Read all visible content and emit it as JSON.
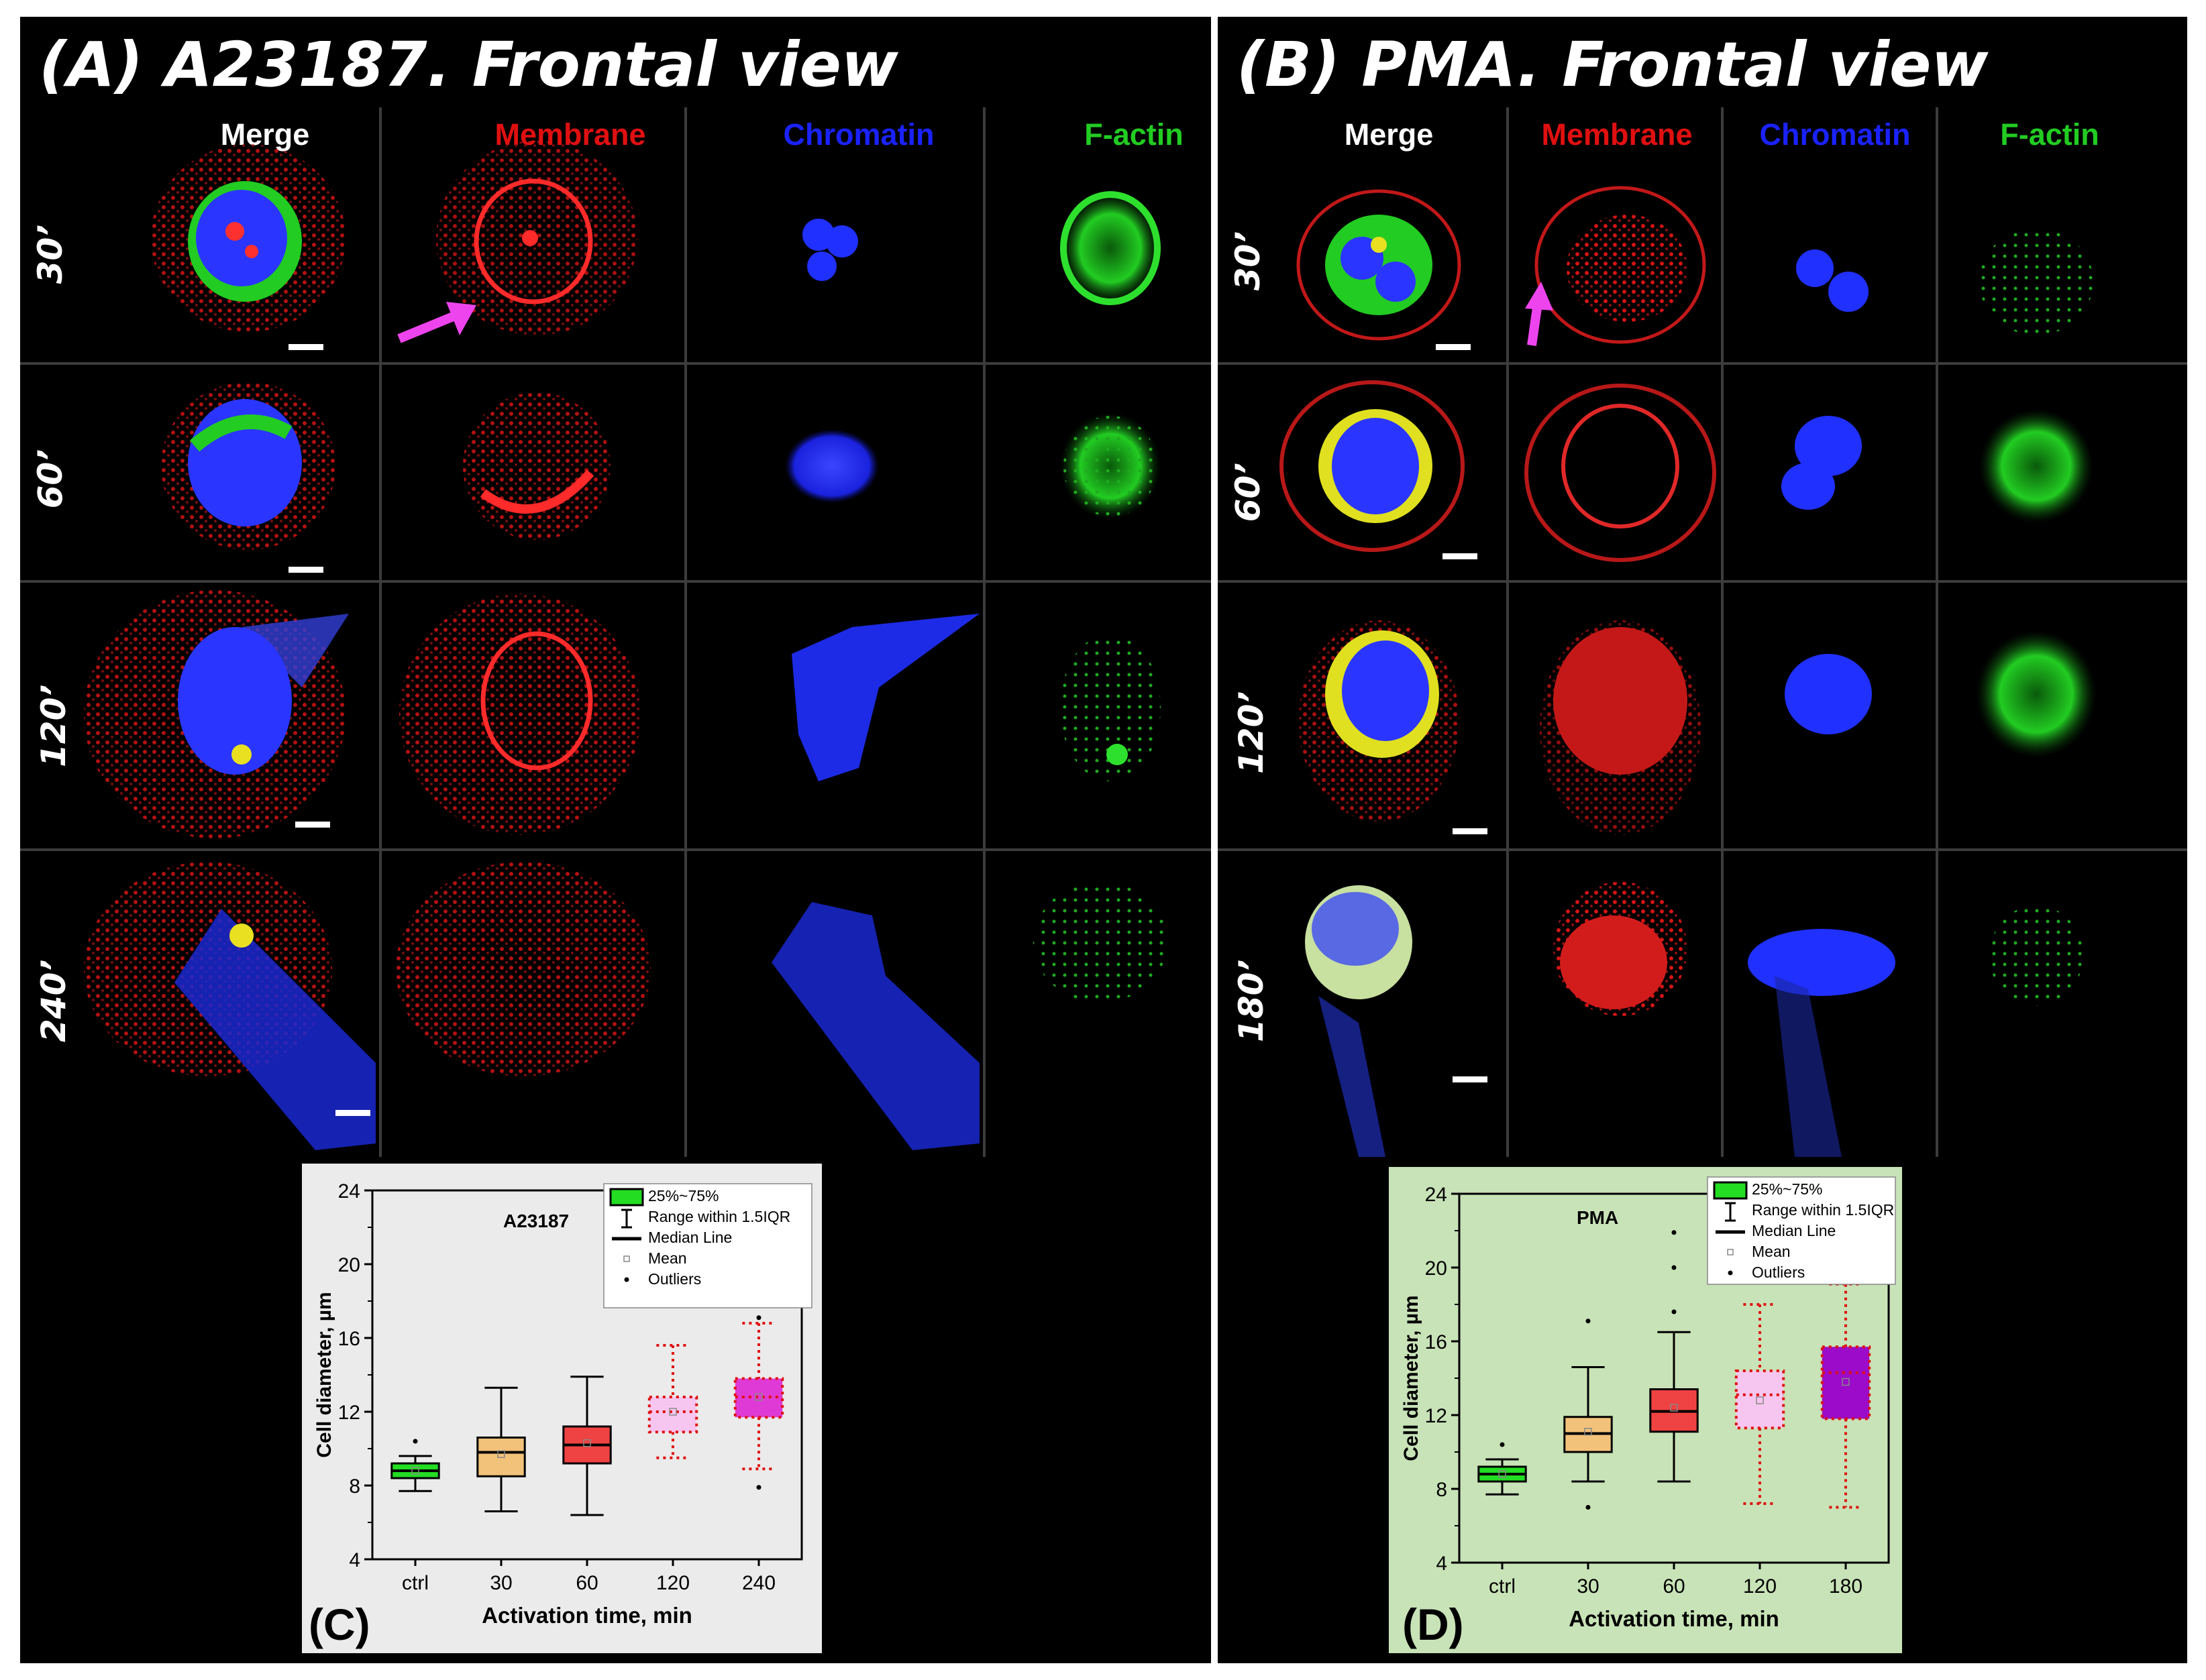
{
  "panelA": {
    "title": "(A) A23187. Frontal view",
    "columns": [
      "Merge",
      "Membrane",
      "Chromatin",
      "F-actin"
    ],
    "rows": [
      "30’",
      "60’",
      "120’",
      "240’"
    ]
  },
  "panelB": {
    "title": "(B) PMA. Frontal view",
    "columns": [
      "Merge",
      "Membrane",
      "Chromatin",
      "F-actin"
    ],
    "rows": [
      "30’",
      "60’",
      "120’",
      "180’"
    ]
  },
  "colors": {
    "merge": "#ffffff",
    "membrane": "#e01010",
    "chromatin": "#1a22ff",
    "factin": "#22cc22",
    "arrow": "#ee44ee",
    "chartC_bg": "#ebebeb",
    "chartD_bg": "#c8e3b7"
  },
  "chart_data": [
    {
      "type": "box",
      "panel_label": "(C)",
      "title": "A23187",
      "xlabel": "Activation time, min",
      "ylabel": "Cell diameter, µm",
      "ylim": [
        4,
        24
      ],
      "yticks": [
        "4",
        "8",
        "12",
        "16",
        "20",
        "24"
      ],
      "categories": [
        "ctrl",
        "30",
        "60",
        "120",
        "240"
      ],
      "boxes": [
        {
          "q1": 8.4,
          "median": 8.8,
          "q3": 9.2,
          "mean": 8.8,
          "whisker_low": 7.7,
          "whisker_high": 9.6,
          "outliers": [
            10.4
          ],
          "fill": "#22dd22",
          "style": "solid"
        },
        {
          "q1": 8.5,
          "median": 9.8,
          "q3": 10.6,
          "mean": 9.7,
          "whisker_low": 6.6,
          "whisker_high": 13.3,
          "outliers": [],
          "fill": "#f3c27a",
          "style": "solid"
        },
        {
          "q1": 9.2,
          "median": 10.2,
          "q3": 11.2,
          "mean": 10.3,
          "whisker_low": 6.4,
          "whisker_high": 13.9,
          "outliers": [],
          "fill": "#ef4242",
          "style": "solid"
        },
        {
          "q1": 10.9,
          "median": 12.0,
          "q3": 12.8,
          "mean": 12.0,
          "whisker_low": 9.5,
          "whisker_high": 15.6,
          "outliers": [],
          "fill": "#f7c6f0",
          "style": "dotted"
        },
        {
          "q1": 11.7,
          "median": 12.8,
          "q3": 13.8,
          "mean": 12.8,
          "whisker_low": 8.9,
          "whisker_high": 16.8,
          "outliers": [
            7.9,
            17.1
          ],
          "fill": "#e03ad6",
          "style": "dotted"
        }
      ],
      "legend": [
        "25%~75%",
        "Range within 1.5IQR",
        "Median Line",
        "Mean",
        "Outliers"
      ]
    },
    {
      "type": "box",
      "panel_label": "(D)",
      "title": "PMA",
      "xlabel": "Activation time, min",
      "ylabel": "Cell diameter, µm",
      "ylim": [
        4,
        24
      ],
      "yticks": [
        "4",
        "8",
        "12",
        "16",
        "20",
        "24"
      ],
      "categories": [
        "ctrl",
        "30",
        "60",
        "120",
        "180"
      ],
      "boxes": [
        {
          "q1": 8.4,
          "median": 8.8,
          "q3": 9.2,
          "mean": 8.8,
          "whisker_low": 7.7,
          "whisker_high": 9.6,
          "outliers": [
            10.4
          ],
          "fill": "#22dd22",
          "style": "solid"
        },
        {
          "q1": 10.0,
          "median": 11.0,
          "q3": 11.9,
          "mean": 11.1,
          "whisker_low": 8.4,
          "whisker_high": 14.6,
          "outliers": [
            7.0,
            17.1
          ],
          "fill": "#f3c27a",
          "style": "solid"
        },
        {
          "q1": 11.1,
          "median": 12.2,
          "q3": 13.4,
          "mean": 12.4,
          "whisker_low": 8.4,
          "whisker_high": 16.5,
          "outliers": [
            17.6,
            20.0,
            21.9
          ],
          "fill": "#ef4242",
          "style": "solid"
        },
        {
          "q1": 11.3,
          "median": 13.1,
          "q3": 14.4,
          "mean": 12.8,
          "whisker_low": 7.2,
          "whisker_high": 18.0,
          "outliers": [],
          "fill": "#f7c6f0",
          "style": "dotted"
        },
        {
          "q1": 11.8,
          "median": 14.3,
          "q3": 15.7,
          "mean": 13.8,
          "whisker_low": 7.0,
          "whisker_high": 19.1,
          "outliers": [],
          "fill": "#9b0bc9",
          "style": "dotted"
        }
      ],
      "legend": [
        "25%~75%",
        "Range within 1.5IQR",
        "Median Line",
        "Mean",
        "Outliers"
      ]
    }
  ]
}
